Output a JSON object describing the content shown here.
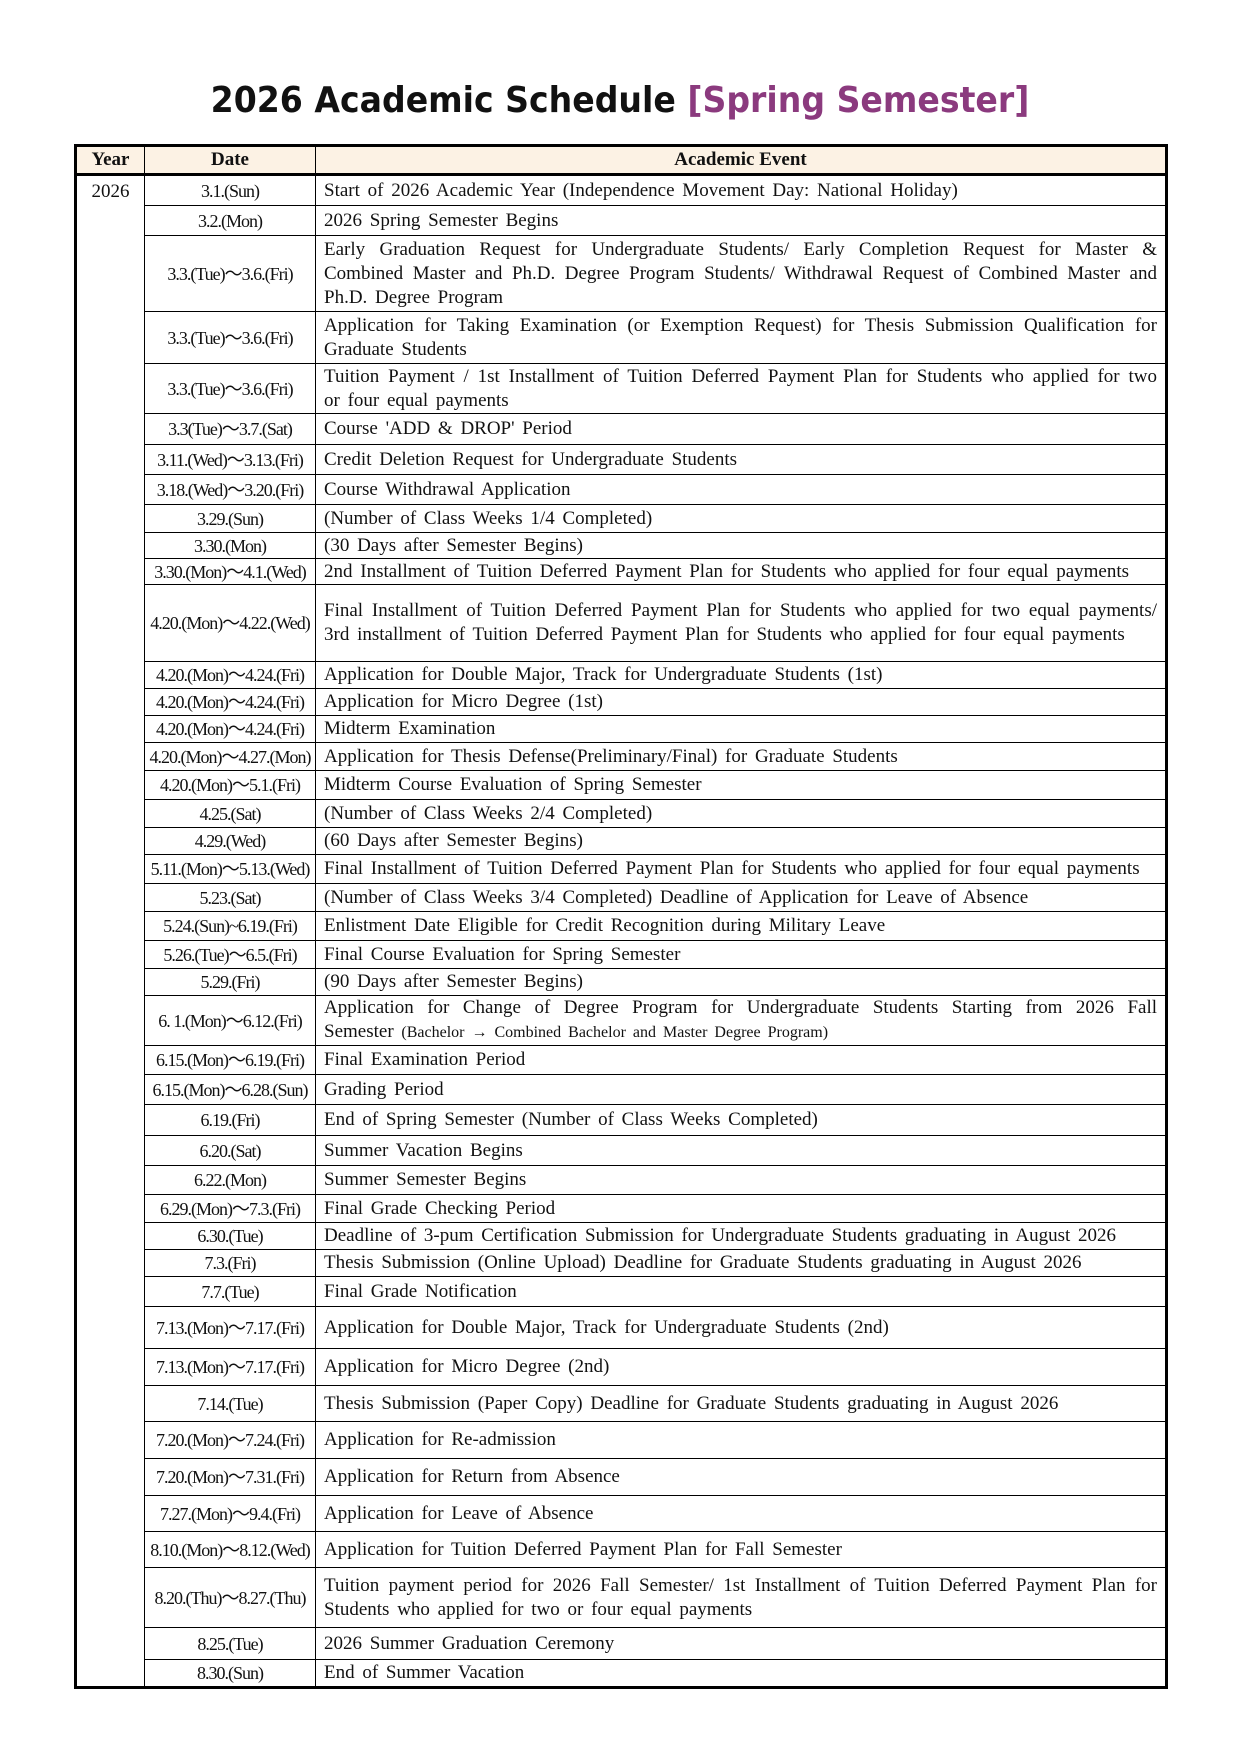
{
  "title": {
    "main": "2026 Academic Schedule",
    "accent": "[Spring Semester]",
    "accent_color": "#8b3a7e"
  },
  "table": {
    "headers": {
      "year": "Year",
      "date": "Date",
      "event": "Academic Event"
    },
    "header_bg": "#fcf2e4",
    "year": "2026",
    "rows": [
      {
        "date": "3.1.(Sun)",
        "event": "Start of 2026 Academic Year (Independence Movement Day: National Holiday)"
      },
      {
        "date": "3.2.(Mon)",
        "event": "2026 Spring Semester Begins"
      },
      {
        "date": "3.3.(Tue)～3.6.(Fri)",
        "event": "Early Graduation Request for Undergraduate Students/ Early Completion Request for Master & Combined Master and Ph.D. Degree Program Students/ Withdrawal Request of Combined Master and Ph.D. Degree Program"
      },
      {
        "date": "3.3.(Tue)～3.6.(Fri)",
        "event": "Application for Taking Examination (or Exemption Request) for Thesis Submission Qualification for Graduate Students"
      },
      {
        "date": "3.3.(Tue)～3.6.(Fri)",
        "event": "Tuition Payment / 1st Installment of Tuition Deferred Payment Plan for Students who applied for two or four equal payments"
      },
      {
        "date": "3.3(Tue)～3.7.(Sat)",
        "event": "Course 'ADD & DROP' Period"
      },
      {
        "date": "3.11.(Wed)～3.13.(Fri)",
        "event": "Credit Deletion Request for Undergraduate Students"
      },
      {
        "date": "3.18.(Wed)～3.20.(Fri)",
        "event": "Course Withdrawal Application"
      },
      {
        "date": "3.29.(Sun)",
        "event": "(Number of Class Weeks 1/4 Completed)"
      },
      {
        "date": "3.30.(Mon)",
        "event": "(30 Days after Semester Begins)"
      },
      {
        "date": "3.30.(Mon)～4.1.(Wed)",
        "event": "2nd Installment of Tuition Deferred Payment Plan for Students who applied for four equal payments"
      },
      {
        "date": "4.20.(Mon)～4.22.(Wed)",
        "event": "Final Installment of Tuition Deferred Payment Plan for Students who applied for two equal payments/ 3rd installment of Tuition Deferred Payment Plan for Students who applied for four equal payments"
      },
      {
        "date": "4.20.(Mon)～4.24.(Fri)",
        "event": "Application for Double Major, Track for Undergraduate Students (1st)"
      },
      {
        "date": "4.20.(Mon)～4.24.(Fri)",
        "event": "Application for Micro Degree (1st)"
      },
      {
        "date": "4.20.(Mon)～4.24.(Fri)",
        "event": "Midterm Examination"
      },
      {
        "date": "4.20.(Mon)～4.27.(Mon)",
        "event": "Application for Thesis Defense(Preliminary/Final) for Graduate Students"
      },
      {
        "date": "4.20.(Mon)～5.1.(Fri)",
        "event": "Midterm Course Evaluation of Spring Semester"
      },
      {
        "date": "4.25.(Sat)",
        "event": "(Number of Class Weeks 2/4 Completed)"
      },
      {
        "date": "4.29.(Wed)",
        "event": "(60 Days after Semester Begins)"
      },
      {
        "date": "5.11.(Mon)～5.13.(Wed)",
        "event": "Final Installment of Tuition Deferred Payment Plan for Students who applied for four equal payments"
      },
      {
        "date": "5.23.(Sat)",
        "event": "(Number of Class Weeks 3/4 Completed) Deadline of Application for Leave of Absence"
      },
      {
        "date": "5.24.(Sun)~6.19.(Fri)",
        "event": "Enlistment Date Eligible for Credit Recognition during Military Leave"
      },
      {
        "date": "5.26.(Tue)～6.5.(Fri)",
        "event": "Final Course Evaluation for Spring Semester"
      },
      {
        "date": "5.29.(Fri)",
        "event": "(90 Days after Semester Begins)"
      },
      {
        "date": "6. 1.(Mon)～6.12.(Fri)",
        "event": "Application for Change of Degree Program for Undergraduate Students Starting from 2026 Fall Semester",
        "event_note": "(Bachelor → Combined Bachelor and Master Degree Program)"
      },
      {
        "date": "6.15.(Mon)～6.19.(Fri)",
        "event": "Final Examination Period"
      },
      {
        "date": "6.15.(Mon)～6.28.(Sun)",
        "event": "Grading Period"
      },
      {
        "date": "6.19.(Fri)",
        "event": "End of Spring Semester (Number of Class Weeks Completed)"
      },
      {
        "date": "6.20.(Sat)",
        "event": "Summer Vacation Begins"
      },
      {
        "date": "6.22.(Mon)",
        "event": "Summer Semester Begins"
      },
      {
        "date": "6.29.(Mon)～7.3.(Fri)",
        "event": "Final Grade Checking Period"
      },
      {
        "date": "6.30.(Tue)",
        "event": "Deadline of 3-pum Certification Submission for Undergraduate Students graduating in August 2026"
      },
      {
        "date": "7.3.(Fri)",
        "event": "Thesis Submission (Online Upload) Deadline for Graduate Students graduating in August 2026"
      },
      {
        "date": "7.7.(Tue)",
        "event": "Final Grade Notification"
      },
      {
        "date": "7.13.(Mon)～7.17.(Fri)",
        "event": "Application for Double Major, Track for Undergraduate Students (2nd)"
      },
      {
        "date": "7.13.(Mon)～7.17.(Fri)",
        "event": "Application for Micro Degree (2nd)"
      },
      {
        "date": "7.14.(Tue)",
        "event": "Thesis Submission (Paper Copy) Deadline for Graduate Students graduating in August 2026"
      },
      {
        "date": "7.20.(Mon)～7.24.(Fri)",
        "event": "Application for Re-admission"
      },
      {
        "date": "7.20.(Mon)～7.31.(Fri)",
        "event": "Application for Return from Absence"
      },
      {
        "date": "7.27.(Mon)～9.4.(Fri)",
        "event": "Application for Leave of Absence"
      },
      {
        "date": "8.10.(Mon)～8.12.(Wed)",
        "event": "Application for Tuition Deferred Payment Plan for Fall Semester"
      },
      {
        "date": "8.20.(Thu)～8.27.(Thu)",
        "event": "Tuition payment period for 2026 Fall Semester/ 1st Installment of Tuition Deferred Payment Plan for Students who applied for two or four equal payments"
      },
      {
        "date": "8.25.(Tue)",
        "event": "2026 Summer Graduation Ceremony"
      },
      {
        "date": "8.30.(Sun)",
        "event": "End of Summer Vacation"
      }
    ]
  }
}
